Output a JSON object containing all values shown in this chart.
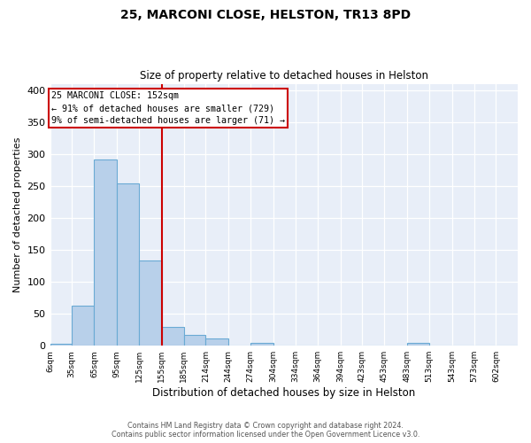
{
  "title": "25, MARCONI CLOSE, HELSTON, TR13 8PD",
  "subtitle": "Size of property relative to detached houses in Helston",
  "xlabel": "Distribution of detached houses by size in Helston",
  "ylabel": "Number of detached properties",
  "bin_labels": [
    "6sqm",
    "35sqm",
    "65sqm",
    "95sqm",
    "125sqm",
    "155sqm",
    "185sqm",
    "214sqm",
    "244sqm",
    "274sqm",
    "304sqm",
    "334sqm",
    "364sqm",
    "394sqm",
    "423sqm",
    "453sqm",
    "483sqm",
    "513sqm",
    "543sqm",
    "573sqm",
    "602sqm"
  ],
  "bar_heights": [
    3,
    62,
    292,
    254,
    133,
    30,
    17,
    11,
    0,
    4,
    0,
    0,
    0,
    0,
    0,
    0,
    4,
    0,
    0,
    0,
    0
  ],
  "bar_color": "#b8d0ea",
  "bar_edge_color": "#6aaad4",
  "vline_color": "#cc0000",
  "annotation_title": "25 MARCONI CLOSE: 152sqm",
  "annotation_line1": "← 91% of detached houses are smaller (729)",
  "annotation_line2": "9% of semi-detached houses are larger (71) →",
  "annotation_box_color": "#cc0000",
  "ylim": [
    0,
    410
  ],
  "yticks": [
    0,
    50,
    100,
    150,
    200,
    250,
    300,
    350,
    400
  ],
  "footer1": "Contains HM Land Registry data © Crown copyright and database right 2024.",
  "footer2": "Contains public sector information licensed under the Open Government Licence v3.0.",
  "bin_edges": [
    6,
    35,
    65,
    95,
    125,
    155,
    185,
    214,
    244,
    274,
    304,
    334,
    364,
    394,
    423,
    453,
    483,
    513,
    543,
    573,
    602
  ],
  "bg_color": "#e8eef8"
}
